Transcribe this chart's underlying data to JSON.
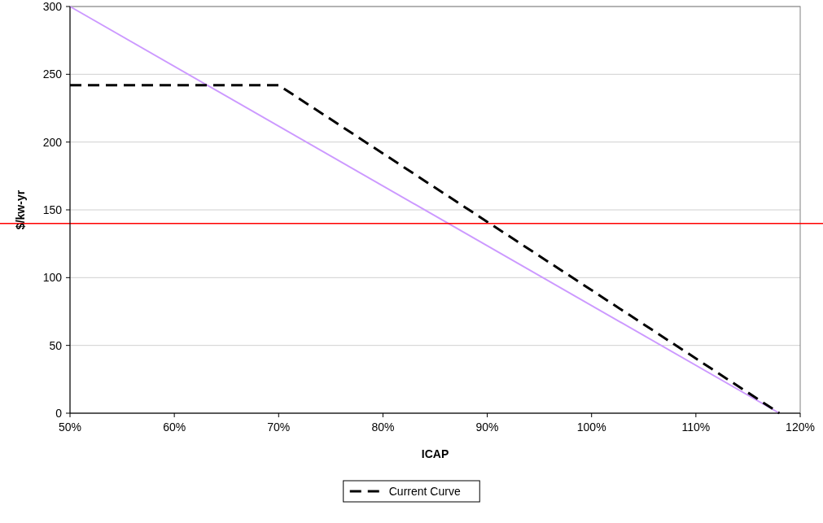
{
  "chart_data": {
    "type": "line",
    "xlabel": "ICAP",
    "ylabel": "$/kw-yr",
    "xlim": [
      50,
      120
    ],
    "xticks": [
      {
        "value": 50,
        "label": "50%"
      },
      {
        "value": 60,
        "label": "60%"
      },
      {
        "value": 70,
        "label": "70%"
      },
      {
        "value": 80,
        "label": "80%"
      },
      {
        "value": 90,
        "label": "90%"
      },
      {
        "value": 100,
        "label": "100%"
      },
      {
        "value": 110,
        "label": "110%"
      },
      {
        "value": 120,
        "label": "120%"
      }
    ],
    "ylim": [
      0,
      300
    ],
    "yticks": [
      0,
      50,
      100,
      150,
      200,
      250,
      300
    ],
    "grid": "y",
    "legend": "bottom",
    "series": [
      {
        "color": "#cc99ff",
        "x": [
          50,
          118
        ],
        "values": [
          300,
          0
        ],
        "line_style": "solid"
      },
      {
        "name": "Current Curve",
        "color": "#000000",
        "x": [
          50,
          70,
          118
        ],
        "values": [
          242,
          242,
          0
        ],
        "line_style": "dashed"
      }
    ],
    "ref_lines": [
      {
        "axis": "y",
        "value": 140,
        "color": "#ff0000"
      }
    ]
  }
}
